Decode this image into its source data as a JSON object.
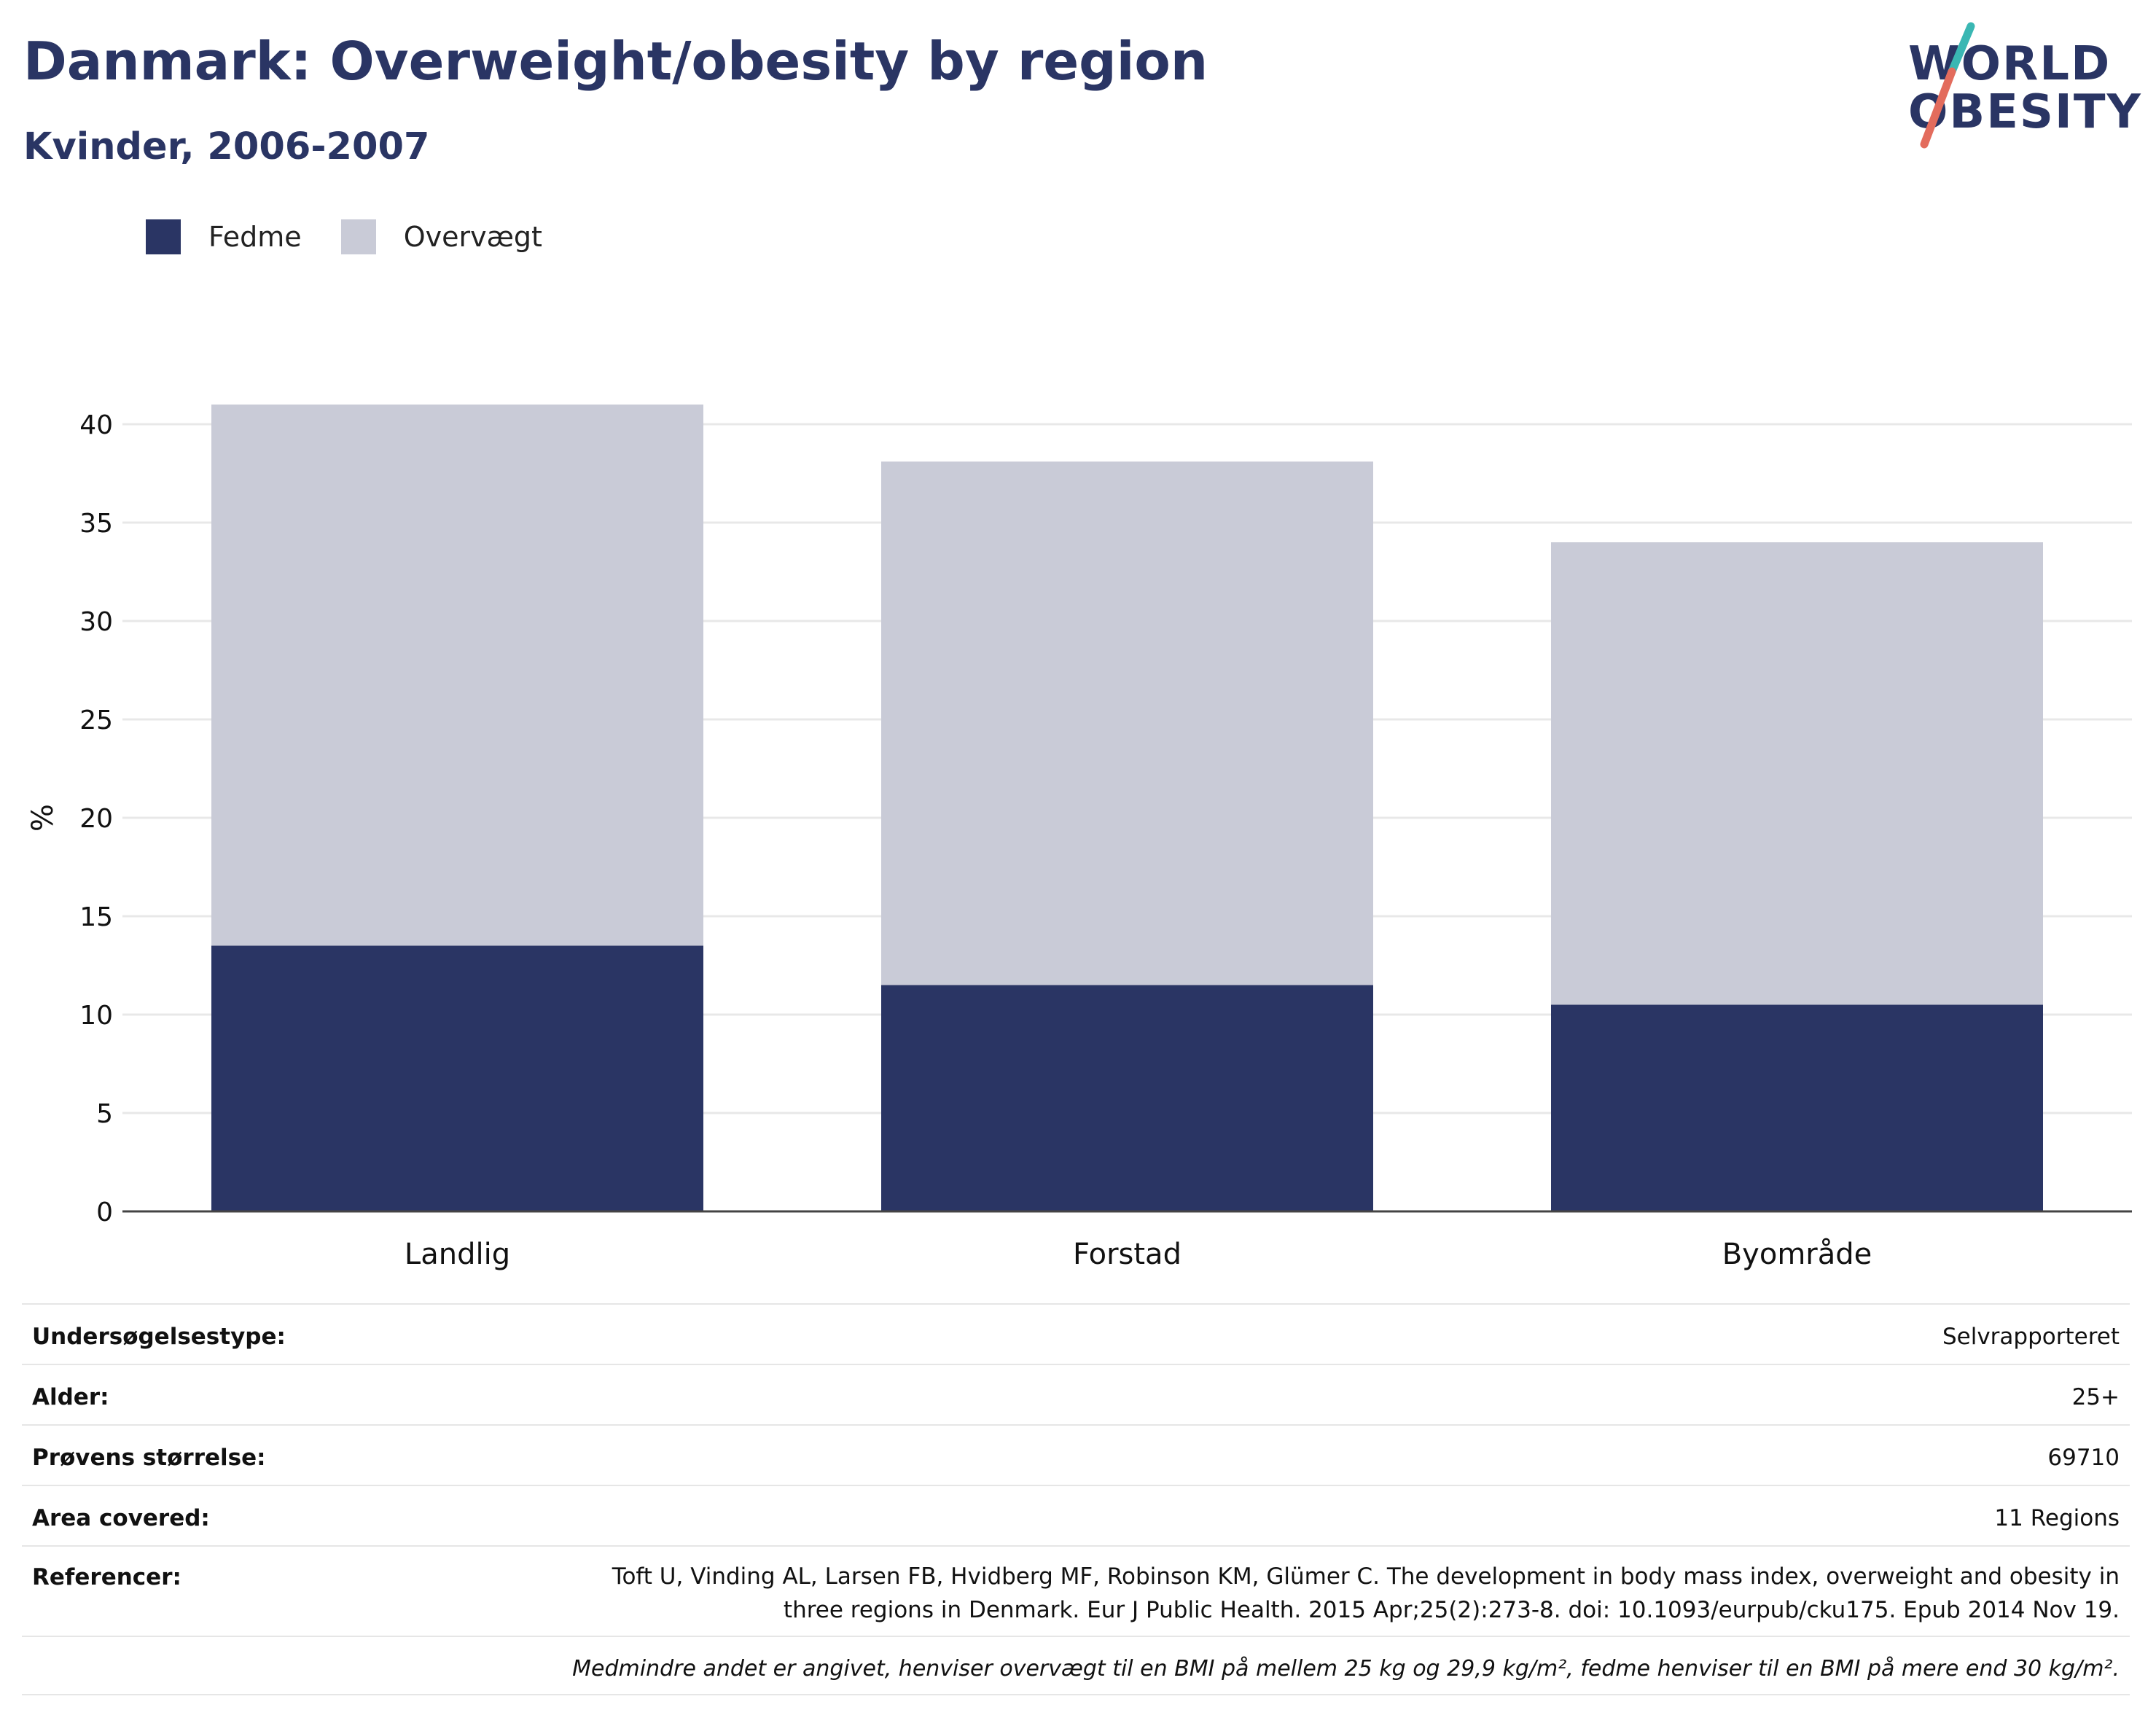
{
  "header": {
    "title": "Danmark: Overweight/obesity by region",
    "subtitle": "Kvinder, 2006-2007"
  },
  "logo": {
    "line1": "WORLD",
    "line2": "OBESITY"
  },
  "colors": {
    "obesity": "#2a3564",
    "overweight": "#c9cbd7",
    "title": "#2a3564",
    "logo_teal": "#3ab7b3",
    "logo_coral": "#e36c5d"
  },
  "chart_data": {
    "type": "bar",
    "stacked": true,
    "categories": [
      "Landlig",
      "Forstad",
      "Byområde"
    ],
    "series": [
      {
        "name": "Fedme",
        "values": [
          13.5,
          11.5,
          10.5
        ]
      },
      {
        "name": "Overvægt",
        "values": [
          27.5,
          26.6,
          23.5
        ]
      }
    ],
    "title": "",
    "xlabel": "",
    "ylabel": "%",
    "ylim": [
      0,
      42
    ],
    "yticks": [
      0,
      5,
      10,
      15,
      20,
      25,
      30,
      35,
      40
    ],
    "grid": true,
    "legend_position": "top-left"
  },
  "info": {
    "rows": [
      {
        "label": "Undersøgelsestype:",
        "value": "Selvrapporteret"
      },
      {
        "label": "Alder:",
        "value": "25+"
      },
      {
        "label": "Prøvens størrelse:",
        "value": "69710"
      },
      {
        "label": "Area covered:",
        "value": "11 Regions"
      }
    ],
    "references_label": "Referencer:",
    "references_line1": "Toft U, Vinding AL, Larsen FB, Hvidberg MF, Robinson KM, Glümer C. The development in body mass index, overweight and obesity in",
    "references_line2": "three regions in Denmark. Eur J Public Health. 2015 Apr;25(2):273-8. doi: 10.1093/eurpub/cku175. Epub 2014 Nov 19.",
    "footnote": "Medmindre andet er angivet, henviser overvægt til en BMI på mellem 25 kg og 29,9 kg/m², fedme henviser til en BMI på mere end 30 kg/m²."
  }
}
